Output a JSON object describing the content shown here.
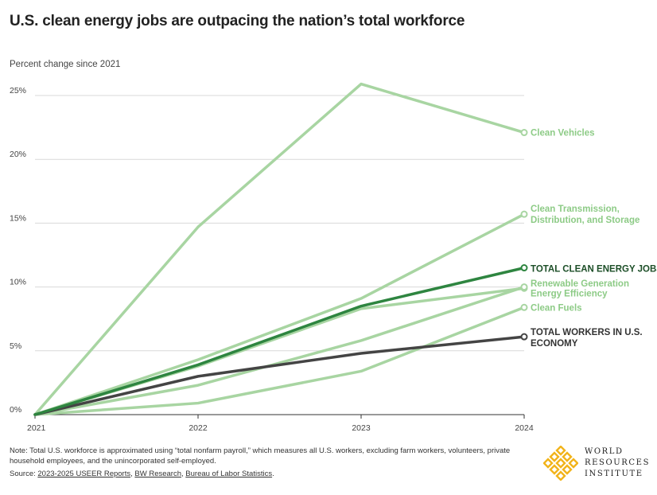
{
  "title": "U.S. clean energy jobs are outpacing the nation’s total workforce",
  "subtitle": "Percent change since 2021",
  "note": "Note: Total U.S. workforce is approximated using “total nonfarm payroll,” which measures all U.S. workers, excluding farm workers, volunteers, private household employees, and the unincorporated self-employed.",
  "source": {
    "prefix": "Source: ",
    "links": [
      "2023-2025 USEER Reports",
      "BW Research",
      "Bureau of Labor Statistics"
    ],
    "suffix": "."
  },
  "logo": {
    "line1": "WORLD",
    "line2": "RESOURCES",
    "line3": "INSTITUTE",
    "color": "#F2B41B"
  },
  "chart_data": {
    "type": "line",
    "x": [
      "2021",
      "2022",
      "2023",
      "2024"
    ],
    "ylim": [
      0,
      25
    ],
    "yticks": [
      0,
      5,
      10,
      15,
      20,
      25
    ],
    "ytick_labels": [
      "0%",
      "5%",
      "10%",
      "15%",
      "20%",
      "25%"
    ],
    "grid": true,
    "series": [
      {
        "name": "Clean Vehicles",
        "values": [
          0,
          14.7,
          25.9,
          22.1
        ],
        "color": "#A8D5A2",
        "emphasis": false
      },
      {
        "name": "Clean Transmission, Distribution, and Storage",
        "values": [
          0,
          4.3,
          9.1,
          15.7
        ],
        "color": "#A8D5A2",
        "emphasis": false
      },
      {
        "name": "Renewable Generation",
        "values": [
          0,
          3.8,
          8.3,
          9.9
        ],
        "color": "#A8D5A2",
        "emphasis": false
      },
      {
        "name": "Energy Efficiency",
        "values": [
          0,
          2.3,
          5.8,
          10.0
        ],
        "color": "#A8D5A2",
        "emphasis": false
      },
      {
        "name": "Clean Fuels",
        "values": [
          0,
          0.9,
          3.4,
          8.4
        ],
        "color": "#A8D5A2",
        "emphasis": false
      },
      {
        "name": "TOTAL WORKERS IN U.S. ECONOMY",
        "values": [
          0,
          3.0,
          4.8,
          6.1
        ],
        "color": "#444444",
        "emphasis": true
      },
      {
        "name": "TOTAL CLEAN ENERGY JOBS",
        "values": [
          0,
          3.9,
          8.5,
          11.5
        ],
        "color": "#2E8540",
        "emphasis": true
      }
    ]
  }
}
